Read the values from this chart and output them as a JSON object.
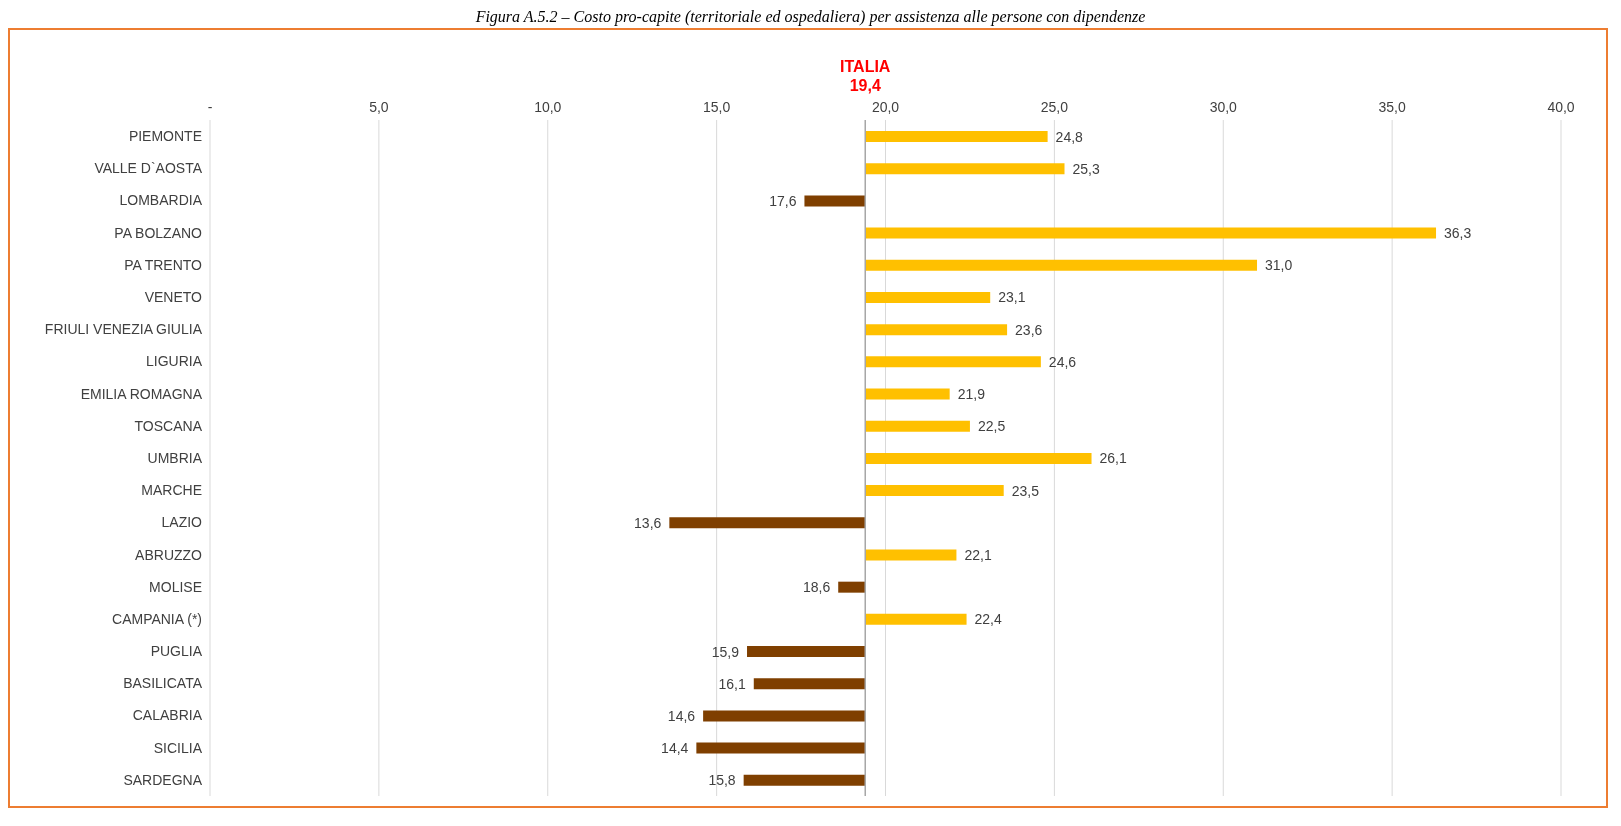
{
  "chart_data": {
    "type": "bar",
    "orientation": "horizontal",
    "title": "Figura A.5.2 – Costo pro-capite (territoriale ed ospedaliera) per assistenza alle persone con dipendenze",
    "categories": [
      "PIEMONTE",
      "VALLE D`AOSTA",
      "LOMBARDIA",
      "PA BOLZANO",
      "PA TRENTO",
      "VENETO",
      "FRIULI VENEZIA GIULIA",
      "LIGURIA",
      "EMILIA ROMAGNA",
      "TOSCANA",
      "UMBRIA",
      "MARCHE",
      "LAZIO",
      "ABRUZZO",
      "MOLISE",
      "CAMPANIA (*)",
      "PUGLIA",
      "BASILICATA",
      "CALABRIA ",
      "SICILIA",
      "SARDEGNA"
    ],
    "base": [
      19.4,
      19.4,
      19.4,
      19.4,
      19.4,
      19.4,
      19.4,
      19.4,
      19.4,
      19.4,
      19.4,
      19.4,
      19.4,
      19.4,
      19.4,
      19.4,
      19.4,
      19.4,
      19.4,
      19.4,
      19.4
    ],
    "values": [
      5.4,
      5.9,
      -1.8,
      16.9,
      11.6,
      3.7,
      4.2,
      5.2,
      2.5,
      3.1,
      6.7,
      4.1,
      -5.8,
      2.7,
      -0.8,
      3.0,
      -3.5,
      -3.3,
      -4.8,
      -5.0,
      -3.6
    ],
    "value_labels": [
      "24,8",
      "25,3",
      "17,6",
      "36,3",
      "31,0",
      "23,1",
      "23,6",
      "24,6",
      "21,9",
      "22,5",
      "26,1",
      "23,5",
      "13,6",
      "22,1",
      "18,6",
      "22,4",
      "15,9",
      "16,1",
      "14,6",
      "14,4",
      "15,8"
    ],
    "colors": [
      "#ffc000",
      "#ffc000",
      "#7f3f00",
      "#ffc000",
      "#ffc000",
      "#ffc000",
      "#ffc000",
      "#ffc000",
      "#ffc000",
      "#ffc000",
      "#ffc000",
      "#ffc000",
      "#7f3f00",
      "#ffc000",
      "#7f3f00",
      "#ffc000",
      "#7f3f00",
      "#7f3f00",
      "#7f3f00",
      "#7f3f00",
      "#7f3f00"
    ],
    "xlim": [
      0,
      40
    ],
    "xticks": [
      {
        "value": 0,
        "label": "-"
      },
      {
        "value": 5,
        "label": "5,0"
      },
      {
        "value": 10,
        "label": "10,0"
      },
      {
        "value": 15,
        "label": "15,0"
      },
      {
        "value": 20,
        "label": "20,0"
      },
      {
        "value": 25,
        "label": "25,0"
      },
      {
        "value": 30,
        "label": "30,0"
      },
      {
        "value": 35,
        "label": "35,0"
      },
      {
        "value": 40,
        "label": "40,0"
      }
    ],
    "ref_lines": [
      {
        "axis": "x",
        "value": 19.4,
        "label": "ITALIA\n19,4",
        "color": "#a6a6a6"
      }
    ],
    "grid": "x"
  }
}
